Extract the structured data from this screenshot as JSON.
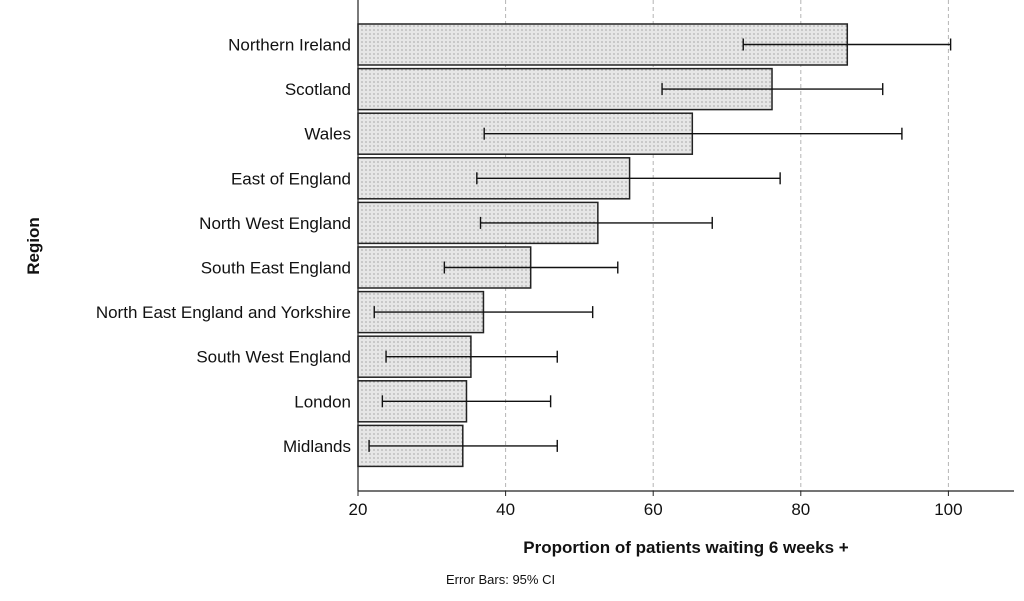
{
  "chart_data": {
    "type": "bar",
    "orientation": "horizontal",
    "categories": [
      "Northern Ireland",
      "Scotland",
      "Wales",
      "East of England",
      "North West England",
      "South East England",
      "North East England and Yorkshire",
      "South West England",
      "London",
      "Midlands"
    ],
    "values": [
      86.3,
      76.1,
      65.3,
      56.8,
      52.5,
      43.4,
      37.0,
      35.3,
      34.7,
      34.2
    ],
    "error_low": [
      72.2,
      61.2,
      37.1,
      36.1,
      36.6,
      31.7,
      22.2,
      23.8,
      23.3,
      21.5
    ],
    "error_high": [
      100.3,
      91.1,
      93.7,
      77.2,
      68.0,
      55.2,
      51.8,
      47.0,
      46.1,
      47.0
    ],
    "xlabel": "Proportion of patients waiting 6 weeks +",
    "ylabel": "Region",
    "xlim": [
      20,
      108
    ],
    "xticks": [
      20,
      40,
      60,
      80,
      100
    ],
    "grid": "vertical dashed",
    "footnote": "Error Bars: 95% CI",
    "bar_fill": "#e4e4e4",
    "bar_stroke": "#222222"
  }
}
